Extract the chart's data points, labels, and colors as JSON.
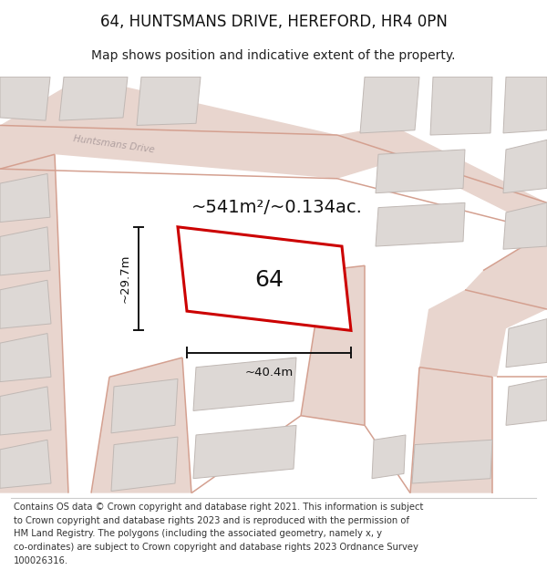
{
  "title": "64, HUNTSMANS DRIVE, HEREFORD, HR4 0PN",
  "subtitle": "Map shows position and indicative extent of the property.",
  "area_text": "~541m²/~0.134ac.",
  "width_text": "~40.4m",
  "height_text": "~29.7m",
  "label_64": "64",
  "map_bg": "#f7f4f2",
  "road_fill": "#e8d5ce",
  "road_line": "#d4a090",
  "building_fill": "#ddd8d5",
  "building_edge": "#c0b8b4",
  "highlight_color": "#cc0000",
  "road_label_color": "#b0a0a0",
  "dim_color": "#111111",
  "title_fontsize": 12,
  "subtitle_fontsize": 10,
  "footer_fontsize": 7.2,
  "area_fontsize": 14,
  "label_fontsize": 18,
  "dim_fontsize": 9.5,
  "footer_lines": [
    "Contains OS data © Crown copyright and database right 2021. This information is subject",
    "to Crown copyright and database rights 2023 and is reproduced with the permission of",
    "HM Land Registry. The polygons (including the associated geometry, namely x, y",
    "co-ordinates) are subject to Crown copyright and database rights 2023 Ordnance Survey",
    "100026316."
  ]
}
